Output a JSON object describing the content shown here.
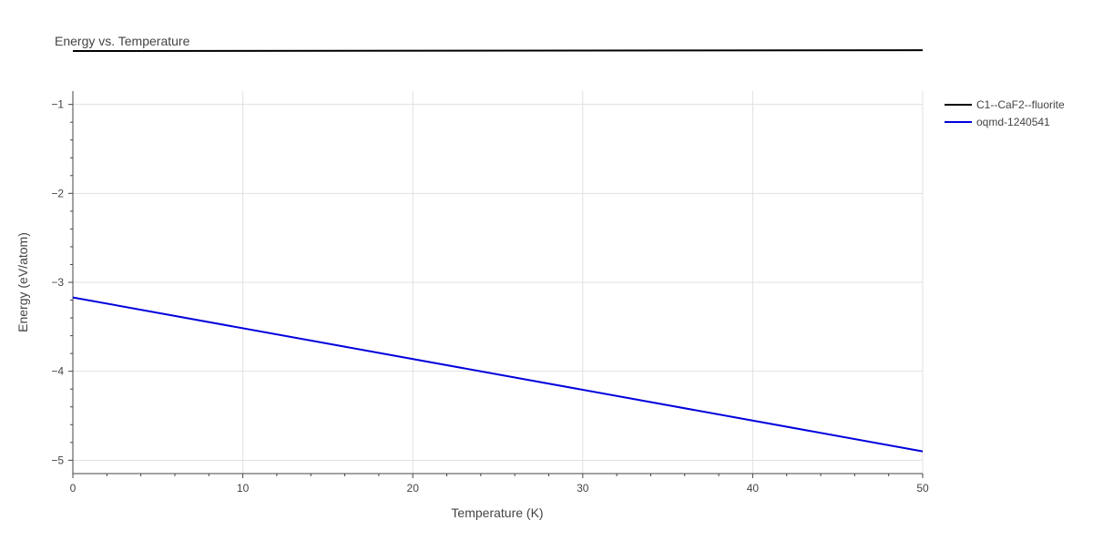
{
  "chart_data": {
    "type": "line",
    "title": "Energy vs. Temperature",
    "xlabel": "Temperature (K)",
    "ylabel": "Energy (eV/atom)",
    "xlim": [
      0,
      50
    ],
    "ylim": [
      -5.15,
      -0.85
    ],
    "x_ticks": [
      0,
      10,
      20,
      30,
      40,
      50
    ],
    "x_tick_labels": [
      "0",
      "10",
      "20",
      "30",
      "40",
      "50"
    ],
    "y_ticks": [
      -1,
      -2,
      -3,
      -4,
      -5
    ],
    "y_tick_labels": [
      "−1",
      "−2",
      "−3",
      "−4",
      "−5"
    ],
    "grid": true,
    "legend_position": "top-right",
    "series": [
      {
        "name": "C1--CaF2--fluorite",
        "color": "#000000",
        "x": [
          0,
          50
        ],
        "y": [
          -0.4,
          -0.39
        ]
      },
      {
        "name": "oqmd-1240541",
        "color": "#0000dd",
        "x": [
          0,
          50
        ],
        "y": [
          -3.17,
          -4.9
        ]
      }
    ]
  }
}
